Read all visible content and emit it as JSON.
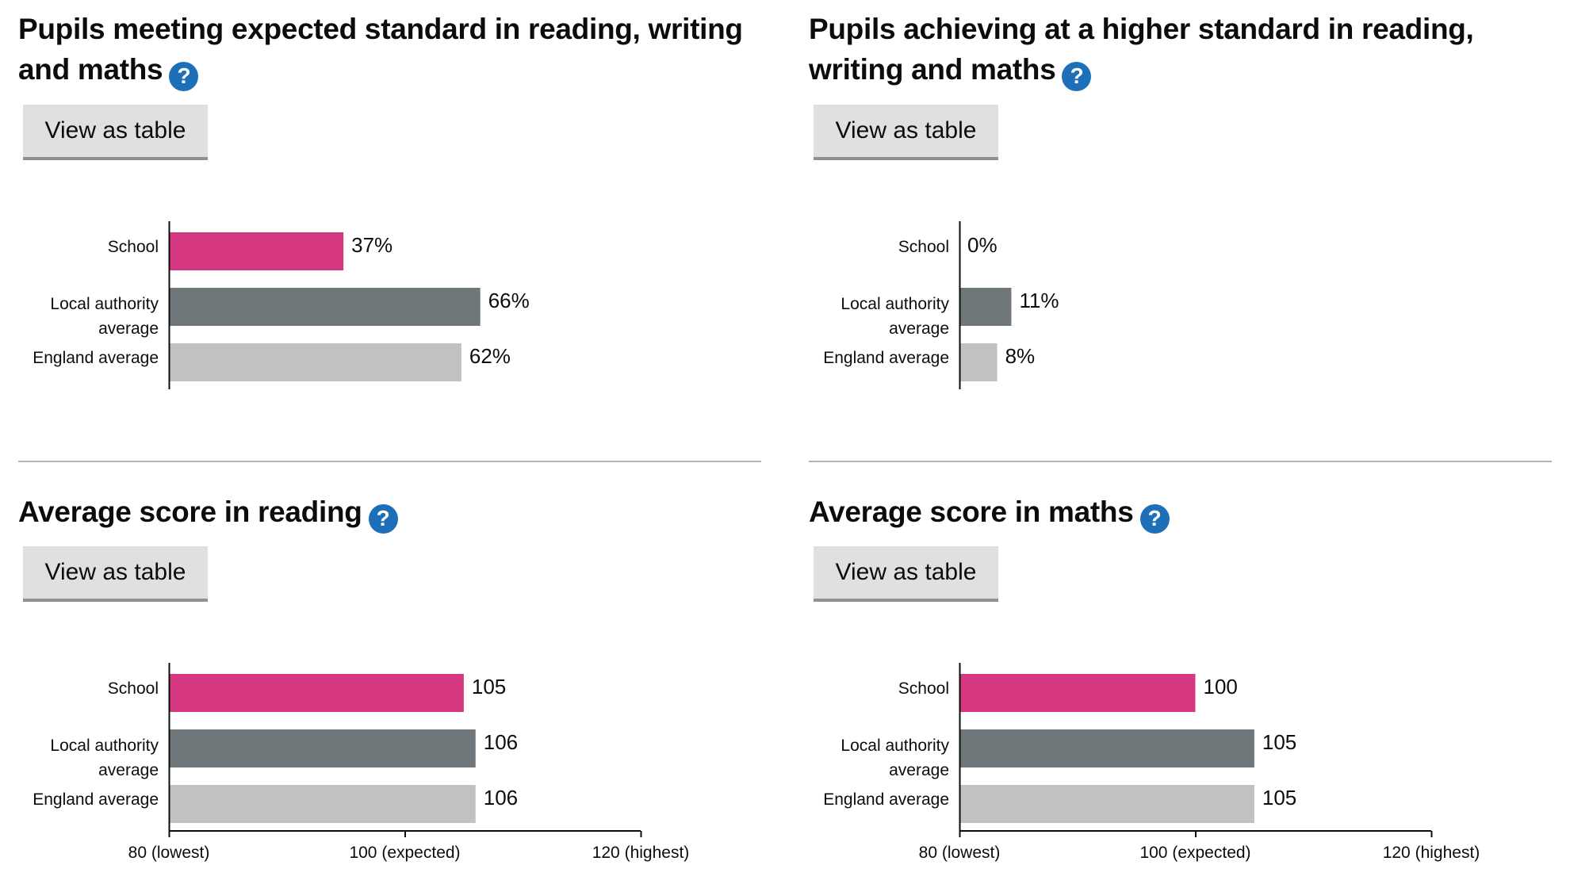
{
  "button_label": "View as table",
  "help_icon": "question-mark-icon",
  "colors": {
    "school": "#d53880",
    "local_authority": "#6f777b",
    "england": "#bfc1c3",
    "help": "#1d70b8",
    "axis": "#0b0c0c"
  },
  "row_labels": {
    "school": "School",
    "local_authority": [
      "Local authority",
      "average"
    ],
    "england": "England average"
  },
  "chart_data": [
    {
      "type": "bar",
      "title": "Pupils meeting expected standard in reading, writing and maths",
      "categories": [
        "School",
        "Local authority average",
        "England average"
      ],
      "values": [
        37,
        66,
        62
      ],
      "value_labels": [
        "37%",
        "66%",
        "62%"
      ],
      "xlim": [
        0,
        100
      ],
      "show_x_axis": false,
      "grid": false
    },
    {
      "type": "bar",
      "title": "Pupils achieving at a higher standard in reading, writing and maths",
      "categories": [
        "School",
        "Local authority average",
        "England average"
      ],
      "values": [
        0,
        11,
        8
      ],
      "value_labels": [
        "0%",
        "11%",
        "8%"
      ],
      "xlim": [
        0,
        100
      ],
      "show_x_axis": false,
      "grid": false
    },
    {
      "type": "bar",
      "title": "Average score in reading",
      "categories": [
        "School",
        "Local authority average",
        "England average"
      ],
      "values": [
        105,
        106,
        106
      ],
      "value_labels": [
        "105",
        "106",
        "106"
      ],
      "xlim": [
        80,
        120
      ],
      "show_x_axis": true,
      "x_ticks": [
        80,
        100,
        120
      ],
      "x_tick_labels": [
        "80 (lowest)",
        "100 (expected)",
        "120 (highest)"
      ],
      "grid": false
    },
    {
      "type": "bar",
      "title": "Average score in maths",
      "categories": [
        "School",
        "Local authority average",
        "England average"
      ],
      "values": [
        100,
        105,
        105
      ],
      "value_labels": [
        "100",
        "105",
        "105"
      ],
      "xlim": [
        80,
        120
      ],
      "show_x_axis": true,
      "x_ticks": [
        80,
        100,
        120
      ],
      "x_tick_labels": [
        "80 (lowest)",
        "100 (expected)",
        "120 (highest)"
      ],
      "grid": false
    }
  ]
}
